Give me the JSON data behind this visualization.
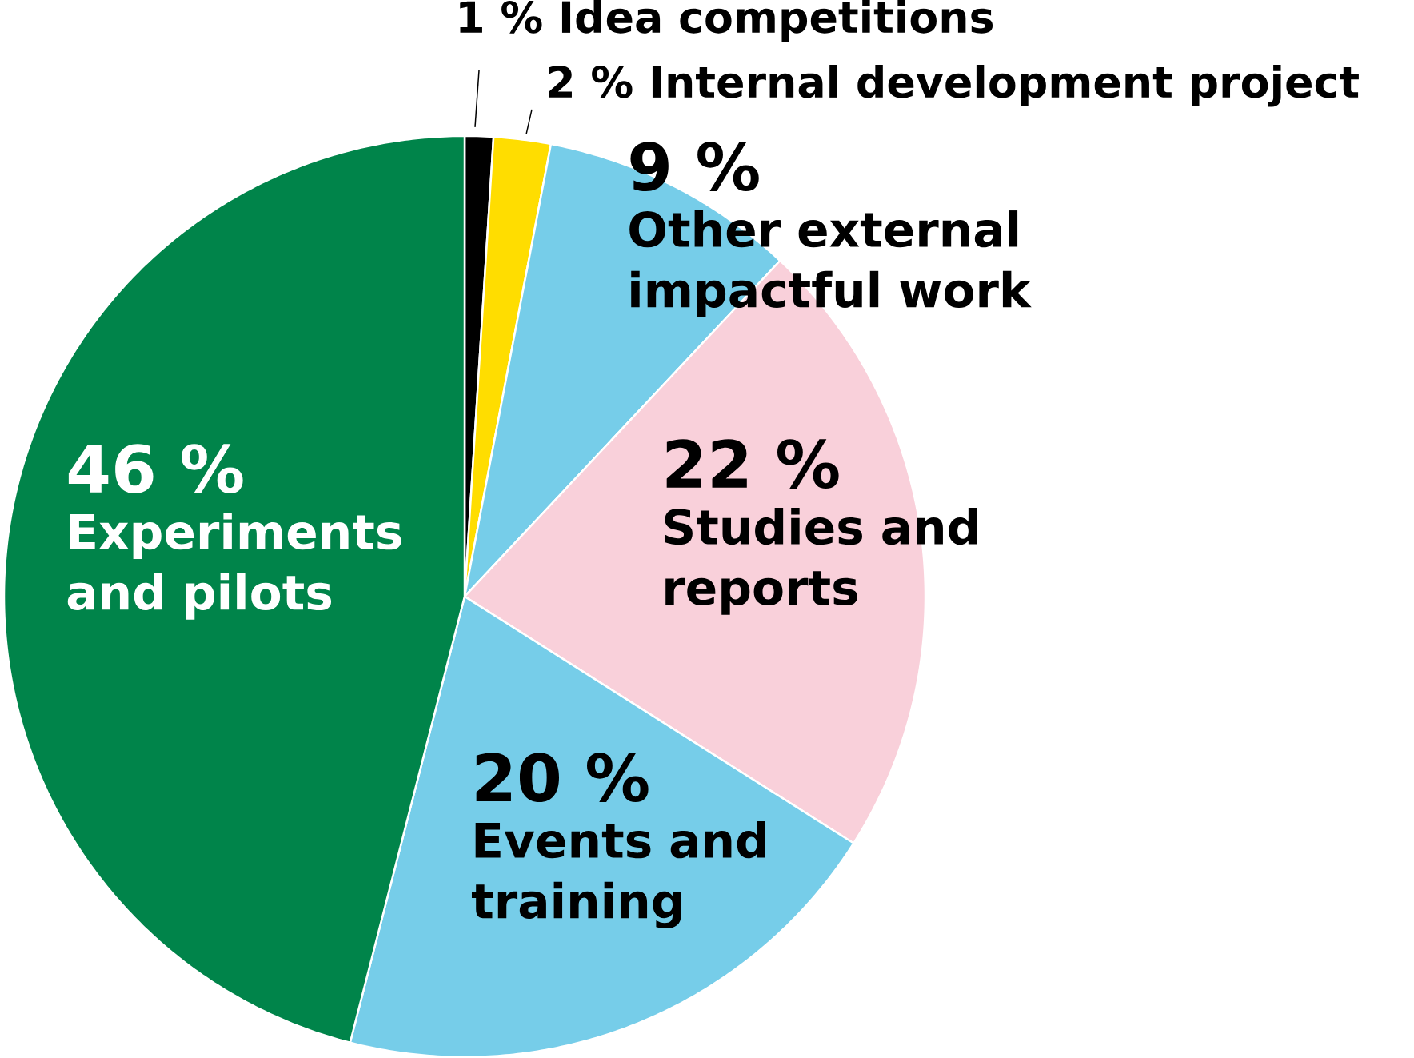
{
  "chart_data": {
    "type": "pie",
    "categories": [
      "Idea competitions",
      "Internal development project",
      "Other external impactful work",
      "Studies and reports",
      "Events and training",
      "Experiments and pilots"
    ],
    "values": [
      1,
      2,
      9,
      22,
      20,
      46
    ],
    "colors": [
      "#000000",
      "#ffdd00",
      "#76cde9",
      "#f9d0da",
      "#76cde9",
      "#00844a"
    ],
    "value_labels": [
      "1 %",
      "2 %",
      "9 %",
      "22 %",
      "20 %",
      "46 %"
    ]
  }
}
